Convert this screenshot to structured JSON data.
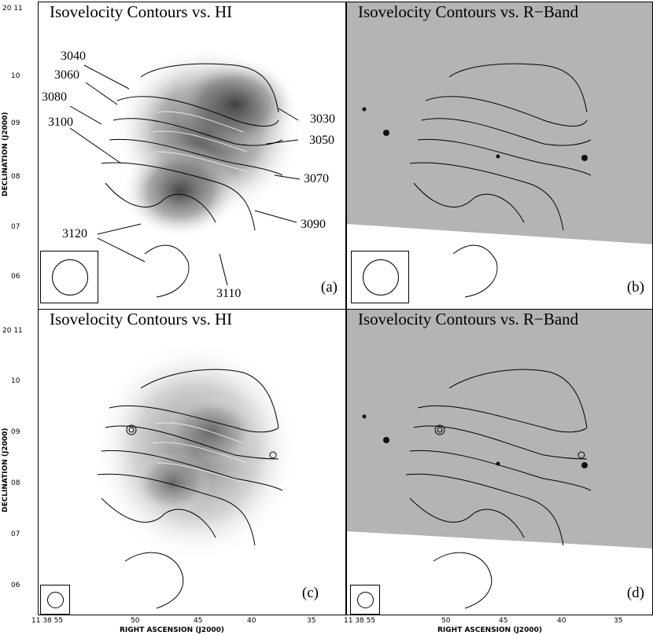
{
  "panels": [
    {
      "title": "Isovelocity Contours vs. HI",
      "label": "(a)"
    },
    {
      "title": "Isovelocity Contours vs. R−Band",
      "label": "(b)"
    },
    {
      "title": "Isovelocity Contours vs. HI",
      "label": "(c)"
    },
    {
      "title": "Isovelocity Contours vs. R−Band",
      "label": "(d)"
    }
  ],
  "contour_labels": [
    "3040",
    "3060",
    "3080",
    "3100",
    "3030",
    "3050",
    "3070",
    "3090",
    "3120",
    "3110"
  ],
  "axes": {
    "ylabel": "DECLINATION (J2000)",
    "xlabel": "RIGHT ASCENSION (J2000)",
    "yticks": [
      "20 11",
      "10",
      "09",
      "08",
      "07",
      "06"
    ],
    "xticks": [
      "11 38 55",
      "50",
      "45",
      "40",
      "35"
    ]
  },
  "colors": {
    "background": "#ffffff",
    "rband_sky": "#b4b4b4",
    "hi_emission": "#3a3a3a",
    "contour_dark": "#000000",
    "contour_light": "#e8e8e8"
  }
}
